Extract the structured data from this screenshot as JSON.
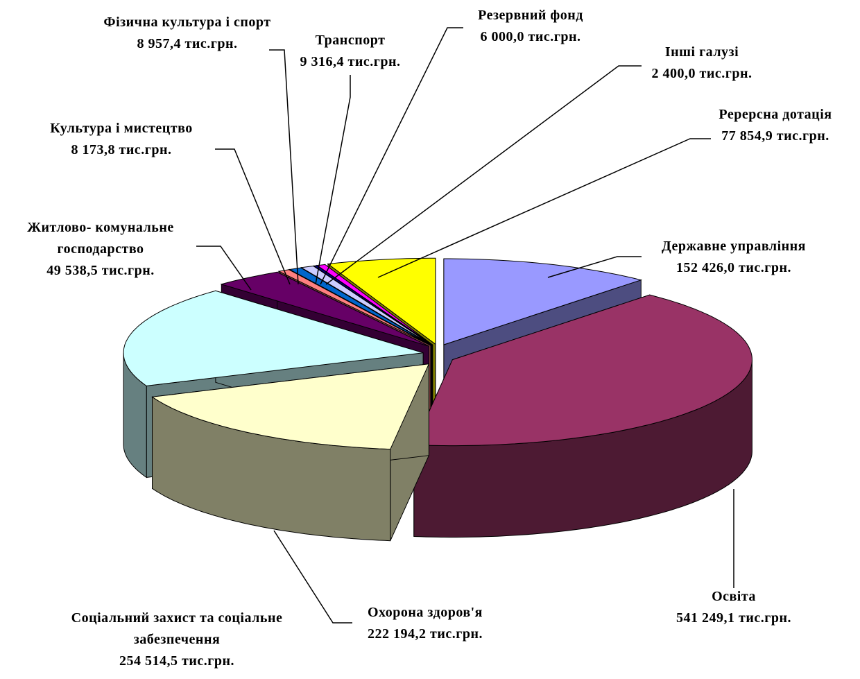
{
  "chart_data": {
    "type": "pie",
    "categories": [
      "Державне управління",
      "Освіта",
      "Охорона здоров'я",
      "Соціальний захист та соціальне забезпечення",
      "Житлово- комунальне господарство",
      "Культура і мистецтво",
      "Фізична культура і спорт",
      "Транспорт",
      "Інші галузі",
      "Резервний фонд",
      "Ререрсна дотація"
    ],
    "values": [
      152426.0,
      541249.1,
      222194.2,
      254514.5,
      49538.5,
      8173.8,
      8957.4,
      9316.4,
      2400.0,
      6000.0,
      77854.9
    ],
    "value_labels": [
      "152 426,0 тис.грн.",
      "541 249,1 тис.грн.",
      "222 194,2 тис.грн.",
      "254 514,5 тис.грн.",
      "49 538,5 тис.грн.",
      "8 173,8 тис.грн.",
      "8 957,4 тис.грн.",
      "9 316,4 тис.грн.",
      "2 400,0 тис.грн.",
      "6 000,0 тис.грн.",
      "77 854,9 тис.грн."
    ],
    "colors": [
      "#9999ff",
      "#993366",
      "#ffffcc",
      "#ccffff",
      "#660066",
      "#ff8080",
      "#0066cc",
      "#ccccff",
      "#000080",
      "#ff00ff",
      "#ffff00"
    ]
  }
}
